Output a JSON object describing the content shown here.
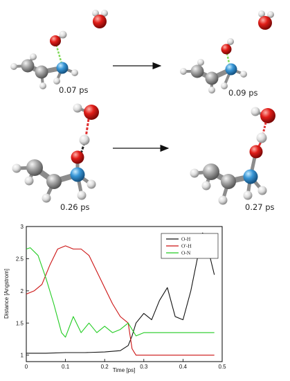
{
  "molecules": {
    "snapshots": [
      {
        "time_label": "0.07 ps"
      },
      {
        "time_label": "0.09 ps"
      },
      {
        "time_label": "0.26 ps"
      },
      {
        "time_label": "0.27 ps"
      }
    ],
    "atom_colors": {
      "carbon": "#9a9a9a",
      "hydrogen": "#e6e6e6",
      "oxygen": "#e0201c",
      "nitrogen": "#3a9ad8"
    },
    "bond_colors": {
      "hbond_green": "#7ed957",
      "hbond_red": "#e03030",
      "hbond_black": "#222222"
    }
  },
  "chart_data": {
    "type": "line",
    "title": "",
    "xlabel": "Time [ps]",
    "ylabel": "Distance [Angstrom]",
    "xlim": [
      0,
      0.5
    ],
    "ylim": [
      0.9,
      3.0
    ],
    "x_ticks": [
      0,
      0.1,
      0.2,
      0.3,
      0.4,
      0.5
    ],
    "x_tick_labels": [
      "0",
      "0.1",
      "0.2",
      "0.3",
      "0.4",
      "0.5"
    ],
    "y_ticks": [
      1,
      1.5,
      2,
      2.5,
      3
    ],
    "y_tick_labels": [
      "1",
      "1.5",
      "2",
      "2.5",
      "3"
    ],
    "legend_position": "top-right",
    "series": [
      {
        "name": "O-H",
        "color": "#111111",
        "x": [
          0.0,
          0.05,
          0.1,
          0.15,
          0.2,
          0.24,
          0.26,
          0.27,
          0.28,
          0.3,
          0.32,
          0.34,
          0.36,
          0.38,
          0.4,
          0.42,
          0.44,
          0.45,
          0.46,
          0.47,
          0.48
        ],
        "y": [
          1.03,
          1.03,
          1.04,
          1.04,
          1.05,
          1.07,
          1.15,
          1.3,
          1.5,
          1.65,
          1.55,
          1.85,
          2.05,
          1.6,
          1.55,
          2.0,
          2.6,
          2.9,
          2.8,
          2.5,
          2.25
        ]
      },
      {
        "name": "O'-H",
        "color": "#cc1111",
        "x": [
          0.0,
          0.02,
          0.04,
          0.06,
          0.08,
          0.1,
          0.12,
          0.14,
          0.16,
          0.18,
          0.2,
          0.22,
          0.24,
          0.26,
          0.27,
          0.28,
          0.3,
          0.35,
          0.4,
          0.45,
          0.48
        ],
        "y": [
          1.95,
          2.0,
          2.1,
          2.4,
          2.65,
          2.7,
          2.65,
          2.65,
          2.55,
          2.3,
          2.05,
          1.8,
          1.6,
          1.5,
          1.1,
          1.0,
          1.0,
          1.0,
          1.0,
          1.0,
          1.0
        ]
      },
      {
        "name": "O-N",
        "color": "#22cc22",
        "x": [
          0.0,
          0.01,
          0.03,
          0.05,
          0.07,
          0.09,
          0.1,
          0.12,
          0.14,
          0.16,
          0.18,
          0.2,
          0.22,
          0.24,
          0.26,
          0.28,
          0.3,
          0.35,
          0.4,
          0.45,
          0.48
        ],
        "y": [
          2.65,
          2.67,
          2.55,
          2.2,
          1.8,
          1.35,
          1.28,
          1.6,
          1.35,
          1.5,
          1.35,
          1.45,
          1.35,
          1.4,
          1.5,
          1.3,
          1.35,
          1.35,
          1.35,
          1.35,
          1.35
        ]
      }
    ]
  }
}
